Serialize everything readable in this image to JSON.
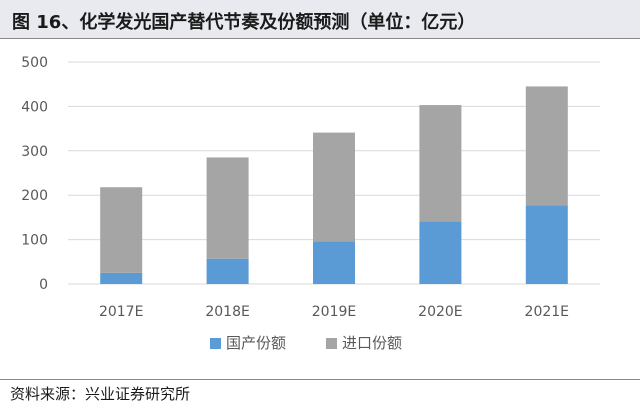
{
  "title": "图 16、化学发光国产替代节奏及份额预测（单位：亿元）",
  "source": "资料来源：兴业证券研究所",
  "colors": {
    "domestic": "#5b9bd5",
    "import": "#a5a5a5",
    "grid": "#d9d9d9",
    "axis_text": "#595959"
  },
  "chart_data": {
    "type": "bar",
    "stacked": true,
    "categories": [
      "2017E",
      "2018E",
      "2019E",
      "2020E",
      "2021E"
    ],
    "series": [
      {
        "name": "国产份额",
        "values": [
          25,
          57,
          96,
          141,
          177
        ],
        "color": "#5b9bd5"
      },
      {
        "name": "进口份额",
        "values": [
          193,
          228,
          245,
          262,
          268
        ],
        "color": "#a5a5a5"
      }
    ],
    "ylim": [
      0,
      500
    ],
    "yticks": [
      0,
      100,
      200,
      300,
      400,
      500
    ],
    "grid": true,
    "legend_position": "bottom",
    "title": "",
    "xlabel": "",
    "ylabel": ""
  }
}
